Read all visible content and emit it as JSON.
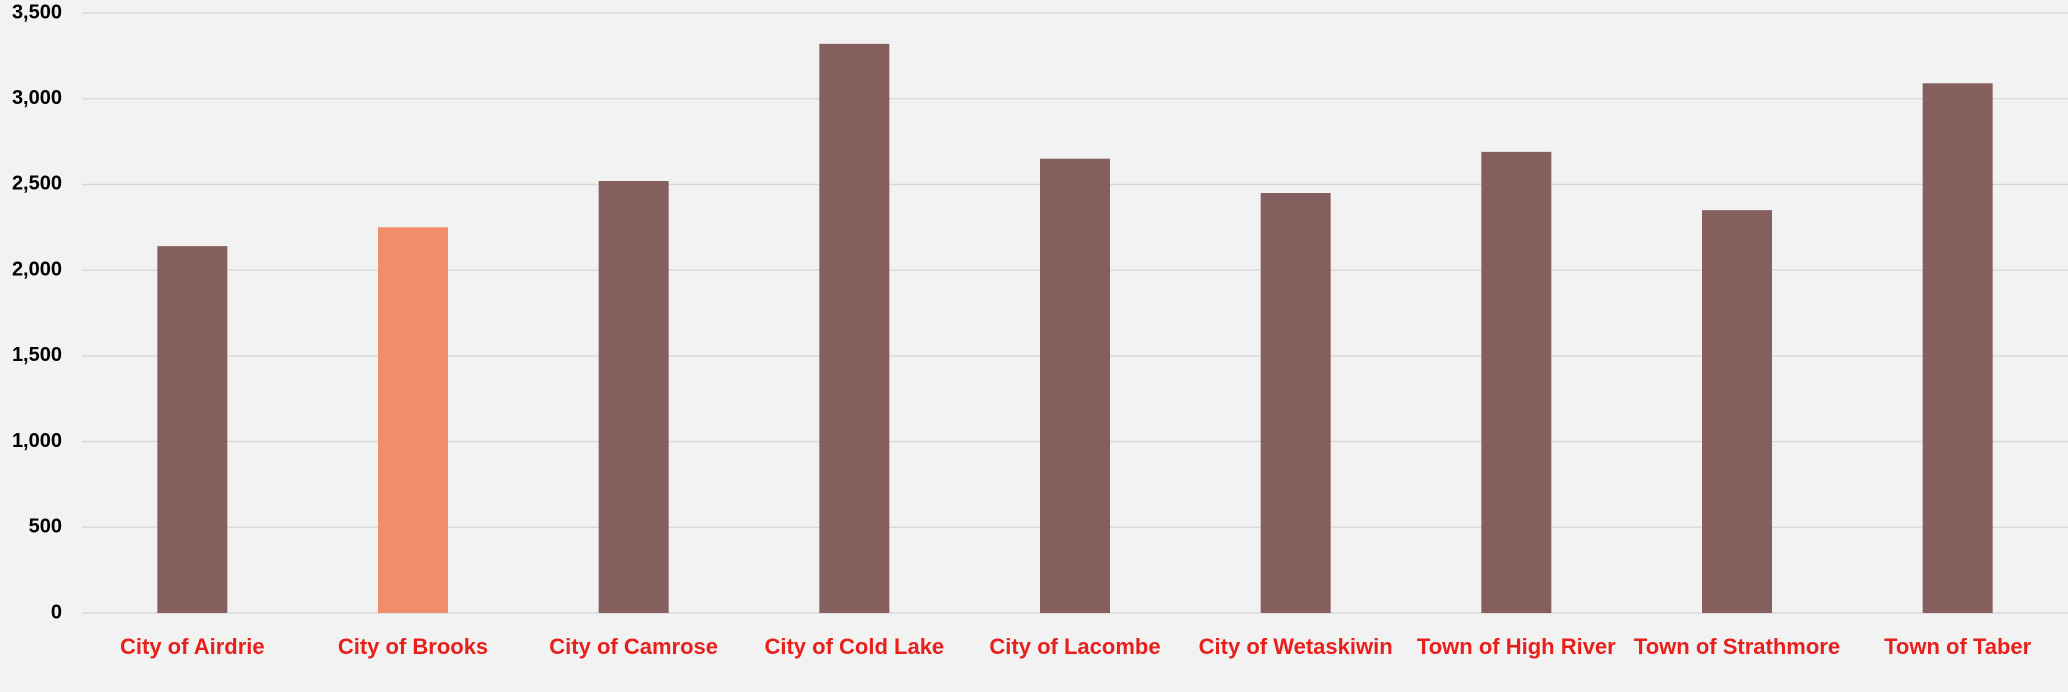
{
  "chart_data": {
    "type": "bar",
    "categories": [
      "City of Airdrie",
      "City of Brooks",
      "City of Camrose",
      "City of Cold Lake",
      "City of Lacombe",
      "City of Wetaskiwin",
      "Town of High River",
      "Town of Strathmore",
      "Town of Taber"
    ],
    "values": [
      2140,
      2250,
      2520,
      3320,
      2650,
      2450,
      2690,
      2350,
      3090
    ],
    "colors": [
      "#855e5e",
      "#f08e6b",
      "#855e5e",
      "#855e5e",
      "#855e5e",
      "#855e5e",
      "#855e5e",
      "#855e5e",
      "#855e5e"
    ],
    "ylim": [
      0,
      3500
    ],
    "yticks": [
      0,
      500,
      {
        "value": 1000,
        "label": "1,000"
      },
      {
        "value": 1500,
        "label": "1,500"
      },
      {
        "value": 2000,
        "label": "2,000"
      },
      {
        "value": 2500,
        "label": "2,500"
      },
      {
        "value": 3000,
        "label": "3,000"
      },
      {
        "value": 3500,
        "label": "3,500"
      }
    ],
    "grid": true
  }
}
